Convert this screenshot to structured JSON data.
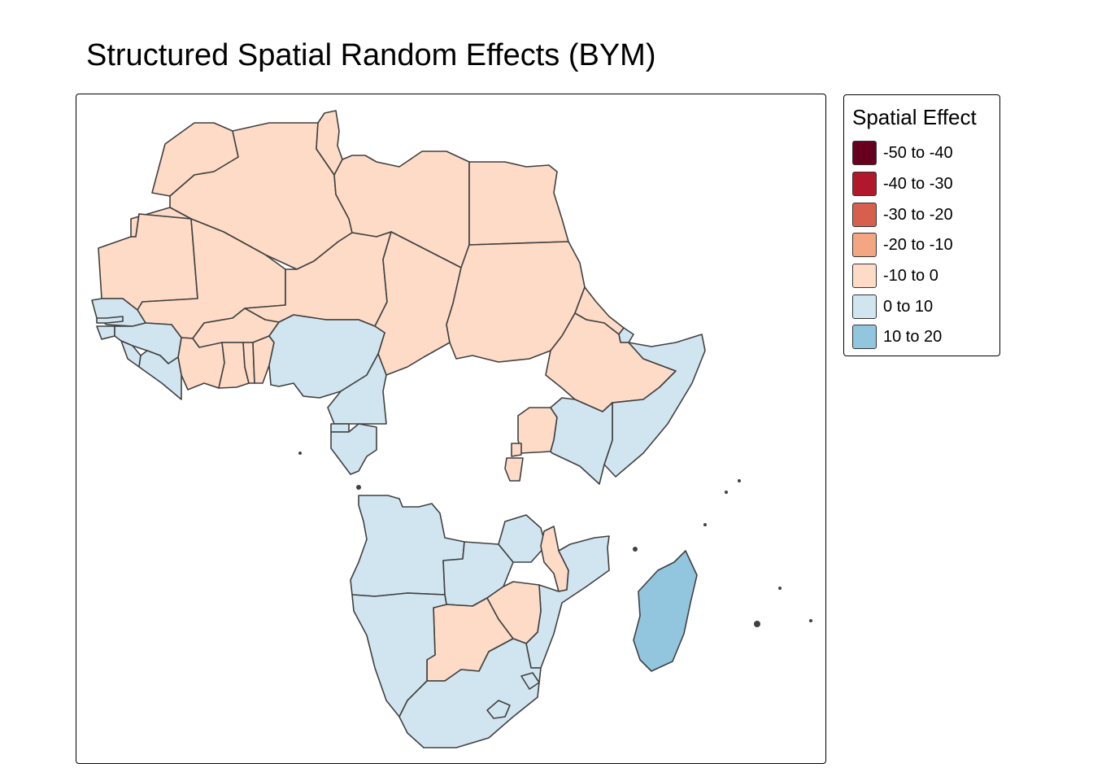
{
  "title": "Structured Spatial Random Effects (BYM)",
  "legend": {
    "title": "Spatial Effect",
    "classes": [
      {
        "label": "-50 to -40",
        "color": "#67001f"
      },
      {
        "label": "-40 to -30",
        "color": "#b2182b"
      },
      {
        "label": "-30 to -20",
        "color": "#d6604d"
      },
      {
        "label": "-20 to -10",
        "color": "#f4a582"
      },
      {
        "label": "-10 to 0",
        "color": "#fddbc7"
      },
      {
        "label": "0 to 10",
        "color": "#d1e5f0"
      },
      {
        "label": "10 to 20",
        "color": "#92c5de"
      }
    ]
  },
  "regions": [
    {
      "name": "Morocco",
      "class": "-10 to 0"
    },
    {
      "name": "Algeria",
      "class": "-10 to 0"
    },
    {
      "name": "Tunisia",
      "class": "-10 to 0"
    },
    {
      "name": "Libya",
      "class": "-10 to 0"
    },
    {
      "name": "Egypt",
      "class": "-10 to 0"
    },
    {
      "name": "Western Sahara",
      "class": "-10 to 0"
    },
    {
      "name": "Mauritania",
      "class": "-10 to 0"
    },
    {
      "name": "Mali",
      "class": "-10 to 0"
    },
    {
      "name": "Niger",
      "class": "-10 to 0"
    },
    {
      "name": "Chad",
      "class": "-10 to 0"
    },
    {
      "name": "Sudan",
      "class": "-10 to 0"
    },
    {
      "name": "Burkina Faso",
      "class": "-10 to 0"
    },
    {
      "name": "Cote d'Ivoire",
      "class": "-10 to 0"
    },
    {
      "name": "Ghana",
      "class": "-10 to 0"
    },
    {
      "name": "Togo",
      "class": "-10 to 0"
    },
    {
      "name": "Benin",
      "class": "-10 to 0"
    },
    {
      "name": "Eritrea",
      "class": "-10 to 0"
    },
    {
      "name": "Ethiopia",
      "class": "-10 to 0"
    },
    {
      "name": "Uganda",
      "class": "-10 to 0"
    },
    {
      "name": "Rwanda",
      "class": "-10 to 0"
    },
    {
      "name": "Burundi",
      "class": "-10 to 0"
    },
    {
      "name": "Malawi",
      "class": "-10 to 0"
    },
    {
      "name": "Botswana",
      "class": "-10 to 0"
    },
    {
      "name": "Zimbabwe",
      "class": "-10 to 0"
    },
    {
      "name": "Senegal",
      "class": "0 to 10"
    },
    {
      "name": "Gambia",
      "class": "0 to 10"
    },
    {
      "name": "Guinea-Bissau",
      "class": "0 to 10"
    },
    {
      "name": "Guinea",
      "class": "0 to 10"
    },
    {
      "name": "Sierra Leone",
      "class": "0 to 10"
    },
    {
      "name": "Liberia",
      "class": "0 to 10"
    },
    {
      "name": "Nigeria",
      "class": "0 to 10"
    },
    {
      "name": "Cameroon",
      "class": "0 to 10"
    },
    {
      "name": "Equatorial Guinea",
      "class": "0 to 10"
    },
    {
      "name": "Gabon",
      "class": "0 to 10"
    },
    {
      "name": "Djibouti",
      "class": "0 to 10"
    },
    {
      "name": "Somalia",
      "class": "0 to 10"
    },
    {
      "name": "Kenya",
      "class": "0 to 10"
    },
    {
      "name": "Angola",
      "class": "0 to 10"
    },
    {
      "name": "Zambia",
      "class": "0 to 10"
    },
    {
      "name": "Tanzania",
      "class": "0 to 10"
    },
    {
      "name": "Mozambique",
      "class": "0 to 10"
    },
    {
      "name": "Namibia",
      "class": "0 to 10"
    },
    {
      "name": "South Africa",
      "class": "0 to 10"
    },
    {
      "name": "Lesotho",
      "class": "0 to 10"
    },
    {
      "name": "Eswatini",
      "class": "0 to 10"
    },
    {
      "name": "Madagascar",
      "class": "10 to 20"
    }
  ]
}
